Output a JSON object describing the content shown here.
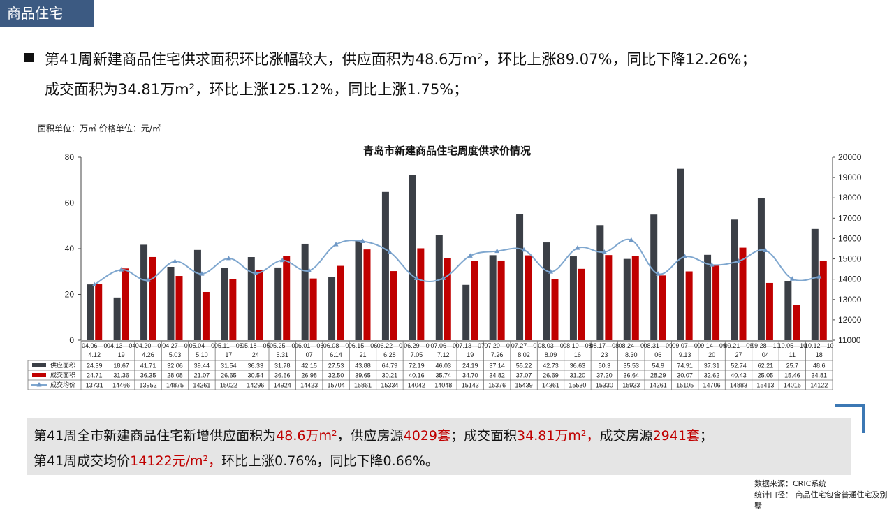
{
  "header": {
    "section_title": "商品住宅"
  },
  "summary": {
    "line1": "第41周新建商品住宅供求面积环比涨幅较大，供应面积为48.6万m²，环比上涨89.07%，同比下降12.26%；",
    "line2": "成交面积为34.81万m²，环比上涨125.12%，同比上涨1.75%；"
  },
  "unit_note": "面积单位：万㎡ 价格单位：元/㎡",
  "chart_data": {
    "type": "bar",
    "title": "青岛市新建商品住宅周度供求价情况",
    "categories": [
      "04.06—04.12",
      "04.13—04.19",
      "04.20—04.26",
      "04.27—05.03",
      "05.04—05.10",
      "05.11—05.17",
      "05.18—05.24",
      "05.25—05.31",
      "06.01—06.07",
      "06.08—06.14",
      "06.15—06.21",
      "06.22—06.28",
      "06.29—07.05",
      "07.06—07.12",
      "07.13—07.19",
      "07.20—07.26",
      "07.27—08.02",
      "08.03—08.09",
      "08.10—08.16",
      "08.17—08.23",
      "08.24—08.30",
      "08.31—09.06",
      "09.07—09.13",
      "09.14—09.20",
      "09.21—09.27",
      "09.28—10.04",
      "10.05—10.11",
      "10.12—10.18"
    ],
    "category_lines": [
      [
        "04.06—0",
        "4.12"
      ],
      [
        "04.13—04",
        "19"
      ],
      [
        "04.20—0",
        "4.26"
      ],
      [
        "04.27—0",
        "5.03"
      ],
      [
        "05.04—0",
        "5.10"
      ],
      [
        "05.11—05",
        "17"
      ],
      [
        "05.18—05",
        "24"
      ],
      [
        "05.25—0",
        "5.31"
      ],
      [
        "06.01—06",
        "07"
      ],
      [
        "06.08—0",
        "6.14"
      ],
      [
        "06.15—06",
        "21"
      ],
      [
        "06.22—0",
        "6.28"
      ],
      [
        "06.29—0",
        "7.05"
      ],
      [
        "07.06—0",
        "7.12"
      ],
      [
        "07.13—07",
        "19"
      ],
      [
        "07.20—0",
        "7.26"
      ],
      [
        "07.27—0",
        "8.02"
      ],
      [
        "08.03—0",
        "8.09"
      ],
      [
        "08.10—08",
        "16"
      ],
      [
        "08.17—08",
        "23"
      ],
      [
        "08.24—0",
        "8.30"
      ],
      [
        "08.31—09",
        "06"
      ],
      [
        "09.07—0",
        "9.13"
      ],
      [
        "09.14—09",
        "20"
      ],
      [
        "09.21—09",
        "27"
      ],
      [
        "09.28—10",
        "04"
      ],
      [
        "10.05—10",
        "11"
      ],
      [
        "10.12—10",
        "18"
      ]
    ],
    "series": [
      {
        "name": "供应面积",
        "type": "bar",
        "axis": "left",
        "color": "#3b3f46",
        "values": [
          24.39,
          18.67,
          41.71,
          32.06,
          39.44,
          31.54,
          36.33,
          31.78,
          42.15,
          27.53,
          43.88,
          64.79,
          72.19,
          46.03,
          24.19,
          37.14,
          55.22,
          42.73,
          36.63,
          50.3,
          35.53,
          54.9,
          74.91,
          37.31,
          52.74,
          62.21,
          25.7,
          48.6
        ]
      },
      {
        "name": "成交面积",
        "type": "bar",
        "axis": "left",
        "color": "#c00000",
        "values": [
          24.71,
          31.36,
          36.35,
          28.08,
          21.07,
          26.65,
          30.54,
          36.66,
          26.98,
          32.5,
          39.65,
          30.21,
          40.16,
          35.74,
          34.7,
          34.82,
          37.07,
          26.69,
          31.2,
          37.2,
          36.64,
          28.29,
          30.07,
          32.62,
          40.43,
          25.05,
          15.46,
          34.81
        ]
      },
      {
        "name": "成交均价",
        "type": "line",
        "axis": "right",
        "color": "#7fa7cf",
        "values": [
          13731,
          14466,
          13952,
          14875,
          14261,
          15022,
          14296,
          14924,
          14423,
          15704,
          15861,
          15334,
          14042,
          14048,
          15143,
          15376,
          15439,
          14361,
          15530,
          15330,
          15923,
          14261,
          15105,
          14706,
          14883,
          15413,
          14015,
          14122
        ]
      }
    ],
    "ylim_left": [
      0,
      80
    ],
    "yticks_left": [
      0,
      20,
      40,
      60,
      80
    ],
    "ylim_right": [
      11000,
      20000
    ],
    "yticks_right": [
      11000,
      12000,
      13000,
      14000,
      15000,
      16000,
      17000,
      18000,
      19000,
      20000
    ],
    "legend": "bottom data table"
  },
  "note": {
    "p1": "第41周全市新建商品住宅新增供应面积为",
    "v1": "48.6万m²",
    "p2": "，供应房源",
    "v2": "4029套",
    "p3": "；成交面积",
    "v3": "34.81万m²，",
    "p4": "成交房源",
    "v4": "2941套",
    "p5": "；",
    "p6": "第41周成交均价",
    "v6": "14122元/m²，",
    "p7": "环比上涨0.76%，同比下降0.66%。"
  },
  "source": {
    "line1": "数据来源：CRIC系统",
    "line2": "统计口径：  商品住宅包含普通住宅及别墅"
  }
}
